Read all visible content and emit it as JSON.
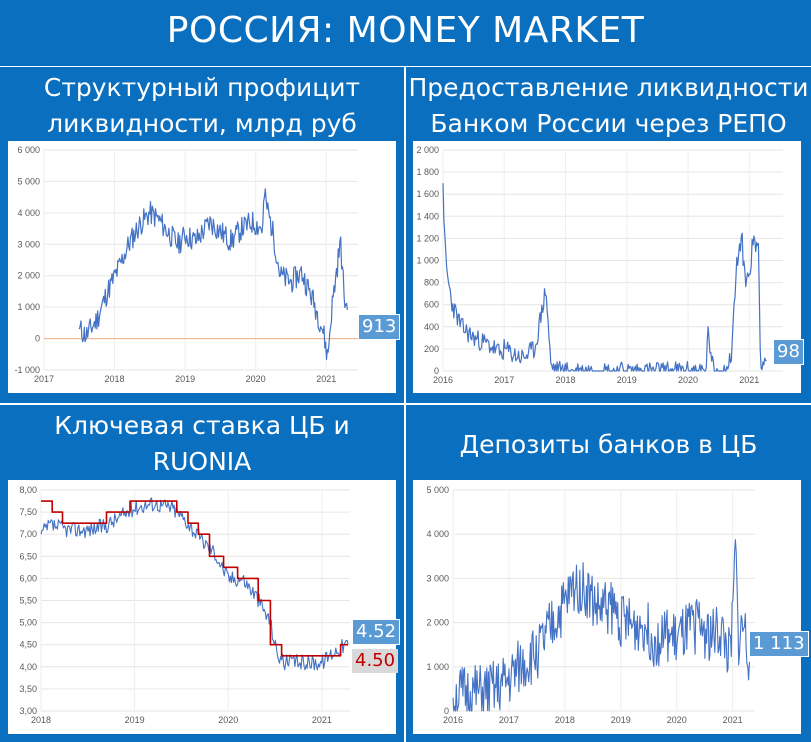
{
  "header": {
    "title": "РОССИЯ: MONEY MARKET"
  },
  "panels": {
    "liquidity": {
      "title_line1": "Структурный профицит",
      "title_line2": "ликвидности, млрд руб",
      "callout": "913"
    },
    "repo": {
      "title_line1": "Предоставление ликвидности",
      "title_line2": "Банком России через РЕПО",
      "callout": "98"
    },
    "rate": {
      "title_line1": "Ключевая ставка ЦБ и",
      "title_line2": "RUONIA",
      "callout_ruonia": "4.52",
      "callout_key": "4.50"
    },
    "deposits": {
      "title_line1": "Депозиты банков в ЦБ",
      "callout": "1 113"
    }
  },
  "colors": {
    "background": "#0b6fbf",
    "series": "#4472c4",
    "key_rate": "#c00000",
    "zero_line": "#f4b183",
    "callout": "#5b9bd5"
  },
  "chart_data": [
    {
      "id": "liquidity",
      "type": "line",
      "title": "Структурный профицит ликвидности, млрд руб",
      "xlim": [
        2017,
        2021.45
      ],
      "ylim": [
        -1000,
        6000
      ],
      "x_ticks": [
        "2017",
        "2018",
        "2019",
        "2020",
        "2021"
      ],
      "y_ticks": [
        "-1 000",
        "0",
        "1 000",
        "2 000",
        "3 000",
        "4 000",
        "5 000",
        "6 000"
      ],
      "reference_line": 0,
      "anchors": [
        [
          2017.5,
          300
        ],
        [
          2017.6,
          100
        ],
        [
          2017.75,
          600
        ],
        [
          2017.9,
          1500
        ],
        [
          2018.05,
          2200
        ],
        [
          2018.2,
          3000
        ],
        [
          2018.35,
          3600
        ],
        [
          2018.5,
          4000
        ],
        [
          2018.62,
          3800
        ],
        [
          2018.75,
          3400
        ],
        [
          2018.9,
          3000
        ],
        [
          2019.0,
          3300
        ],
        [
          2019.15,
          3100
        ],
        [
          2019.35,
          3700
        ],
        [
          2019.5,
          3400
        ],
        [
          2019.65,
          3100
        ],
        [
          2019.8,
          3500
        ],
        [
          2019.95,
          3700
        ],
        [
          2020.1,
          3500
        ],
        [
          2020.12,
          4600
        ],
        [
          2020.25,
          3300
        ],
        [
          2020.35,
          2000
        ],
        [
          2020.5,
          1800
        ],
        [
          2020.65,
          2100
        ],
        [
          2020.8,
          1300
        ],
        [
          2020.95,
          300
        ],
        [
          2021.02,
          -600
        ],
        [
          2021.08,
          1000
        ],
        [
          2021.15,
          2200
        ],
        [
          2021.2,
          3100
        ],
        [
          2021.26,
          1200
        ],
        [
          2021.3,
          913
        ]
      ],
      "last_value": 913
    },
    {
      "id": "repo",
      "type": "line",
      "title": "Предоставление ликвидности Банком России через РЕПО",
      "xlim": [
        2016,
        2021.55
      ],
      "ylim": [
        0,
        2000
      ],
      "x_ticks": [
        "2016",
        "2017",
        "2018",
        "2019",
        "2020",
        "2021"
      ],
      "y_ticks": [
        "0",
        "200",
        "400",
        "600",
        "800",
        "1 000",
        "1 200",
        "1 400",
        "1 600",
        "1 800",
        "2 000"
      ],
      "anchors": [
        [
          2016.0,
          1700
        ],
        [
          2016.03,
          1150
        ],
        [
          2016.06,
          900
        ],
        [
          2016.15,
          600
        ],
        [
          2016.3,
          400
        ],
        [
          2016.5,
          300
        ],
        [
          2016.7,
          250
        ],
        [
          2016.85,
          200
        ],
        [
          2016.95,
          150
        ],
        [
          2017.0,
          200
        ],
        [
          2017.15,
          150
        ],
        [
          2017.3,
          120
        ],
        [
          2017.5,
          200
        ],
        [
          2017.6,
          500
        ],
        [
          2017.68,
          750
        ],
        [
          2017.72,
          400
        ],
        [
          2017.76,
          50
        ],
        [
          2017.85,
          10
        ],
        [
          2018.0,
          0
        ],
        [
          2018.5,
          0
        ],
        [
          2019.0,
          0
        ],
        [
          2019.5,
          0
        ],
        [
          2020.0,
          0
        ],
        [
          2020.3,
          0
        ],
        [
          2020.33,
          500
        ],
        [
          2020.36,
          100
        ],
        [
          2020.45,
          0
        ],
        [
          2020.6,
          0
        ],
        [
          2020.7,
          100
        ],
        [
          2020.8,
          1000
        ],
        [
          2020.88,
          1200
        ],
        [
          2020.92,
          850
        ],
        [
          2021.0,
          850
        ],
        [
          2021.05,
          1150
        ],
        [
          2021.15,
          1150
        ],
        [
          2021.18,
          100
        ],
        [
          2021.28,
          98
        ]
      ],
      "last_value": 98
    },
    {
      "id": "rate",
      "type": "line",
      "title": "Ключевая ставка ЦБ и RUONIA",
      "xlim": [
        2018,
        2021.3
      ],
      "ylim": [
        3.0,
        8.0
      ],
      "x_ticks": [
        "2018",
        "2019",
        "2020",
        "2021"
      ],
      "y_ticks": [
        "3,00",
        "3,50",
        "4,00",
        "4,50",
        "5,00",
        "5,50",
        "6,00",
        "6,50",
        "7,00",
        "7,50",
        "8,00"
      ],
      "series": [
        {
          "name": "",
          "anchors": [
            [
              2018.0,
              7.0
            ],
            [
              2018.1,
              7.2
            ],
            [
              2018.3,
              7.1
            ],
            [
              2018.5,
              7.1
            ],
            [
              2018.7,
              7.2
            ],
            [
              2018.85,
              7.4
            ],
            [
              2019.0,
              7.6
            ],
            [
              2019.2,
              7.7
            ],
            [
              2019.4,
              7.6
            ],
            [
              2019.55,
              7.3
            ],
            [
              2019.7,
              6.9
            ],
            [
              2019.85,
              6.6
            ],
            [
              2020.0,
              6.0
            ],
            [
              2020.15,
              6.0
            ],
            [
              2020.3,
              5.6
            ],
            [
              2020.45,
              5.0
            ],
            [
              2020.52,
              4.3
            ],
            [
              2020.6,
              4.1
            ],
            [
              2020.8,
              4.1
            ],
            [
              2021.0,
              4.1
            ],
            [
              2021.1,
              4.3
            ],
            [
              2021.2,
              4.45
            ],
            [
              2021.28,
              4.52
            ]
          ]
        },
        {
          "name": "",
          "steps": [
            [
              2018.0,
              7.75
            ],
            [
              2018.12,
              7.5
            ],
            [
              2018.23,
              7.25
            ],
            [
              2018.7,
              7.5
            ],
            [
              2018.95,
              7.75
            ],
            [
              2019.45,
              7.5
            ],
            [
              2019.57,
              7.25
            ],
            [
              2019.68,
              7.0
            ],
            [
              2019.8,
              6.5
            ],
            [
              2019.95,
              6.25
            ],
            [
              2020.1,
              6.0
            ],
            [
              2020.32,
              5.5
            ],
            [
              2020.45,
              4.5
            ],
            [
              2020.57,
              4.25
            ],
            [
              2021.2,
              4.5
            ]
          ]
        }
      ],
      "last_value_ruonia": 4.52,
      "last_value_key": 4.5
    },
    {
      "id": "deposits",
      "type": "line",
      "title": "Депозиты банков в ЦБ",
      "xlim": [
        2016,
        2021.4
      ],
      "ylim": [
        0,
        5000
      ],
      "x_ticks": [
        "2016",
        "2017",
        "2018",
        "2019",
        "2020",
        "2021"
      ],
      "y_ticks": [
        "0",
        "1 000",
        "2 000",
        "3 000",
        "4 000",
        "5 000"
      ],
      "anchors": [
        [
          2016.0,
          300
        ],
        [
          2016.2,
          400
        ],
        [
          2016.5,
          400
        ],
        [
          2016.8,
          500
        ],
        [
          2017.0,
          700
        ],
        [
          2017.2,
          1000
        ],
        [
          2017.4,
          1200
        ],
        [
          2017.6,
          1500
        ],
        [
          2017.8,
          2000
        ],
        [
          2018.0,
          2400
        ],
        [
          2018.2,
          2900
        ],
        [
          2018.4,
          2700
        ],
        [
          2018.6,
          2300
        ],
        [
          2018.8,
          2400
        ],
        [
          2019.0,
          2100
        ],
        [
          2019.2,
          1900
        ],
        [
          2019.4,
          2000
        ],
        [
          2019.6,
          1600
        ],
        [
          2019.8,
          1700
        ],
        [
          2020.0,
          1600
        ],
        [
          2020.2,
          1800
        ],
        [
          2020.4,
          2000
        ],
        [
          2020.6,
          1700
        ],
        [
          2020.8,
          1800
        ],
        [
          2020.95,
          1200
        ],
        [
          2021.0,
          2000
        ],
        [
          2021.05,
          3800
        ],
        [
          2021.1,
          1600
        ],
        [
          2021.2,
          2000
        ],
        [
          2021.3,
          1113
        ]
      ],
      "last_value": 1113
    }
  ]
}
